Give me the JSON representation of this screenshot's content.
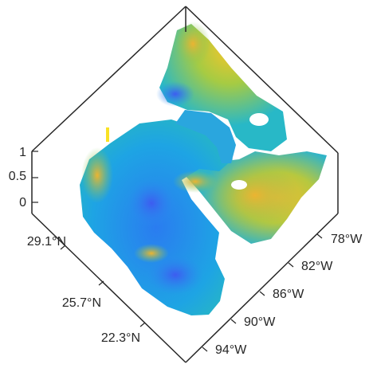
{
  "chart_data": {
    "type": "surface",
    "title": "",
    "view": "3-D surface, top-down rotated (diamond) view",
    "colormap": [
      "#3d26a8",
      "#2b73f5",
      "#17a8e3",
      "#24c3aa",
      "#94c94b",
      "#e8b82b",
      "#f9e225"
    ],
    "z_axis": {
      "ticks": [
        "0",
        "0.5",
        "1"
      ],
      "lim": [
        0,
        1
      ]
    },
    "latitude_axis": {
      "ticks": [
        "29.1°N",
        "25.7°N",
        "22.3°N"
      ]
    },
    "longitude_axis": {
      "ticks": [
        "78°W",
        "82°W",
        "86°W",
        "90°W",
        "94°W"
      ]
    },
    "grid": false,
    "box": true
  }
}
